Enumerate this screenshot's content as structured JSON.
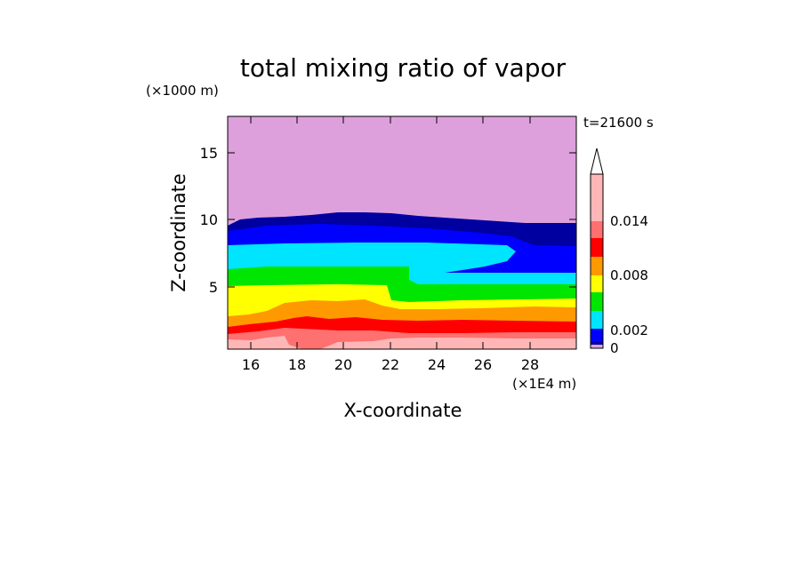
{
  "chart_data": {
    "type": "heatmap",
    "title": "total mixing ratio of vapor",
    "xlabel": "X-coordinate",
    "ylabel": "Z-coordinate",
    "x_unit": "(×1E4 m)",
    "y_unit": "(×1000 m)",
    "time_label": "t=21600 s",
    "xlim": [
      15,
      30
    ],
    "ylim": [
      0.5,
      17.8
    ],
    "x_ticks": [
      "16",
      "18",
      "20",
      "22",
      "24",
      "26",
      "28"
    ],
    "y_ticks": [
      "5",
      "10",
      "15"
    ],
    "colorbar_labels": [
      "0.014",
      "0.008",
      "0.002",
      "0"
    ],
    "levels": [
      0,
      0.0002,
      0.002,
      0.004,
      0.006,
      0.008,
      0.01,
      0.012,
      0.014,
      0.016
    ],
    "colors": {
      "lavender": "#dda0dd",
      "navy": "#0000a0",
      "blue": "#0000ff",
      "cyan": "#00e5ff",
      "green": "#00e600",
      "yellow": "#ffff00",
      "orange": "#ff9900",
      "red": "#ff0000",
      "salmon": "#ff7070",
      "pink": "#ffb6b6"
    },
    "contour_bands": [
      {
        "color": "pink",
        "z_top_approx": 1.2
      },
      {
        "color": "salmon",
        "z_top_approx": 1.6
      },
      {
        "color": "red",
        "z_top_approx": 2.1
      },
      {
        "color": "orange",
        "z_top_approx": 2.9
      },
      {
        "color": "yellow",
        "z_top_approx": 4.2
      },
      {
        "color": "green",
        "z_top_approx": 6.2
      },
      {
        "color": "cyan",
        "z_top_approx": 7.9
      },
      {
        "color": "blue",
        "z_top_approx": 9.2
      },
      {
        "color": "navy",
        "z_top_approx": 10.3
      },
      {
        "color": "lavender",
        "z_top_approx": 17.8
      }
    ]
  }
}
